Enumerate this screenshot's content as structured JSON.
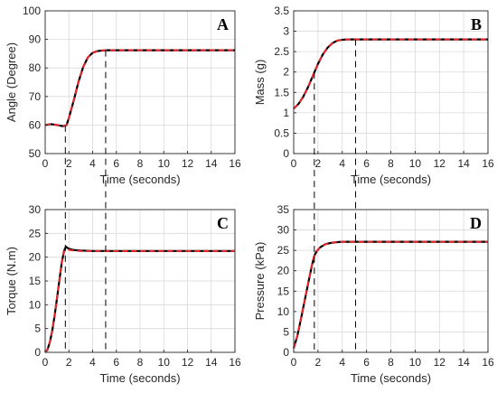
{
  "colors": {
    "black_curve": "#000000",
    "red_dashed_curve": "#e8262b",
    "grid": "#d9d9d9",
    "axes": "#262626",
    "dashed_marker": "#000000"
  },
  "marker_times": [
    1.7,
    5.1
  ],
  "chart_data": [
    {
      "type": "line",
      "panel": "A",
      "xlabel": "Time (seconds)",
      "ylabel": "Angle (Degree)",
      "xlim": [
        0,
        16
      ],
      "ylim": [
        50,
        100
      ],
      "xticks": [
        "0",
        "2",
        "4",
        "6",
        "8",
        "10",
        "12",
        "14",
        "16"
      ],
      "yticks": [
        "50",
        "60",
        "70",
        "80",
        "90",
        "100"
      ],
      "grid": true,
      "series": [
        {
          "style": "solid-black",
          "x": [
            0,
            0.5,
            1,
            1.5,
            1.8,
            2,
            2.4,
            2.8,
            3.2,
            3.6,
            4,
            4.4,
            4.8,
            5.2,
            6,
            8,
            10,
            12,
            14,
            16
          ],
          "y": [
            60,
            60.3,
            60,
            59.6,
            60,
            62.5,
            68.5,
            75,
            80.3,
            83.7,
            85.3,
            85.9,
            86.1,
            86.2,
            86.2,
            86.2,
            86.2,
            86.2,
            86.2,
            86.2
          ]
        },
        {
          "style": "dashed-red",
          "x": [
            0,
            0.5,
            1,
            1.5,
            1.8,
            2,
            2.4,
            2.8,
            3.2,
            3.6,
            4,
            4.4,
            4.8,
            5.2,
            6,
            8,
            10,
            12,
            14,
            16
          ],
          "y": [
            60,
            60.3,
            60,
            59.6,
            60,
            62.5,
            68.5,
            75,
            80.3,
            83.7,
            85.3,
            85.9,
            86.1,
            86.2,
            86.2,
            86.2,
            86.2,
            86.2,
            86.2,
            86.2
          ]
        }
      ]
    },
    {
      "type": "line",
      "panel": "B",
      "xlabel": "Time (seconds)",
      "ylabel": "Mass (g)",
      "xlim": [
        0,
        16
      ],
      "ylim": [
        0,
        3.5
      ],
      "xticks": [
        "0",
        "2",
        "4",
        "6",
        "8",
        "10",
        "12",
        "14",
        "16"
      ],
      "yticks": [
        "0",
        "0.5",
        "1",
        "1.5",
        "2",
        "2.5",
        "3",
        "3.5"
      ],
      "grid": true,
      "series": [
        {
          "style": "solid-black",
          "x": [
            0,
            0.4,
            0.8,
            1.2,
            1.6,
            2,
            2.4,
            2.8,
            3.2,
            3.6,
            4,
            4.4,
            5,
            6,
            8,
            10,
            12,
            14,
            16
          ],
          "y": [
            1.1,
            1.22,
            1.4,
            1.64,
            1.92,
            2.2,
            2.43,
            2.6,
            2.71,
            2.77,
            2.79,
            2.8,
            2.8,
            2.8,
            2.8,
            2.8,
            2.8,
            2.8,
            2.8
          ]
        },
        {
          "style": "dashed-red",
          "x": [
            0,
            0.4,
            0.8,
            1.2,
            1.6,
            2,
            2.4,
            2.8,
            3.2,
            3.6,
            4,
            4.4,
            5,
            6,
            8,
            10,
            12,
            14,
            16
          ],
          "y": [
            1.1,
            1.22,
            1.4,
            1.64,
            1.92,
            2.2,
            2.43,
            2.6,
            2.71,
            2.77,
            2.79,
            2.8,
            2.8,
            2.8,
            2.8,
            2.8,
            2.8,
            2.8,
            2.8
          ]
        }
      ]
    },
    {
      "type": "line",
      "panel": "C",
      "xlabel": "Time (seconds)",
      "ylabel": "Torque (N.m)",
      "xlim": [
        0,
        16
      ],
      "ylim": [
        0,
        30
      ],
      "xticks": [
        "0",
        "2",
        "4",
        "6",
        "8",
        "10",
        "12",
        "14",
        "16"
      ],
      "yticks": [
        "0",
        "5",
        "10",
        "15",
        "20",
        "25",
        "30"
      ],
      "grid": true,
      "series": [
        {
          "style": "solid-black",
          "x": [
            0,
            0.2,
            0.4,
            0.6,
            0.8,
            1,
            1.2,
            1.4,
            1.6,
            1.75,
            1.9,
            2.1,
            2.4,
            3,
            4,
            5,
            6,
            8,
            10,
            12,
            14,
            16
          ],
          "y": [
            0,
            0.6,
            2.2,
            4.6,
            7.8,
            11.4,
            15.2,
            18.9,
            21.4,
            22.2,
            21.9,
            21.7,
            21.5,
            21.4,
            21.3,
            21.3,
            21.3,
            21.3,
            21.3,
            21.3,
            21.3,
            21.3
          ]
        },
        {
          "style": "dashed-red",
          "x": [
            0,
            0.2,
            0.4,
            0.6,
            0.8,
            1,
            1.2,
            1.4,
            1.6,
            1.75,
            1.9,
            2.1,
            2.4,
            3,
            4,
            5,
            6,
            8,
            10,
            12,
            14,
            16
          ],
          "y": [
            0,
            0.6,
            2.2,
            4.6,
            7.8,
            11.4,
            15.2,
            18.9,
            21.2,
            21.7,
            21.6,
            21.5,
            21.4,
            21.3,
            21.3,
            21.3,
            21.3,
            21.3,
            21.3,
            21.3,
            21.3,
            21.3
          ]
        }
      ]
    },
    {
      "type": "line",
      "panel": "D",
      "xlabel": "Time (seconds)",
      "ylabel": "Pressure (kPa)",
      "xlim": [
        0,
        16
      ],
      "ylim": [
        0,
        35
      ],
      "xticks": [
        "0",
        "2",
        "4",
        "6",
        "8",
        "10",
        "12",
        "14",
        "16"
      ],
      "yticks": [
        "0",
        "5",
        "10",
        "15",
        "20",
        "25",
        "30",
        "35"
      ],
      "grid": true,
      "series": [
        {
          "style": "solid-black",
          "x": [
            0,
            0.3,
            0.6,
            0.9,
            1.2,
            1.5,
            1.7,
            1.9,
            2.2,
            2.6,
            3,
            3.5,
            4,
            5,
            6,
            8,
            10,
            12,
            14,
            16
          ],
          "y": [
            1,
            4,
            8.2,
            12.6,
            17,
            21.3,
            23.7,
            24.8,
            25.8,
            26.5,
            26.8,
            27,
            27.1,
            27.1,
            27.1,
            27.1,
            27.1,
            27.1,
            27.1,
            27.1
          ]
        },
        {
          "style": "dashed-red",
          "x": [
            0,
            0.3,
            0.6,
            0.9,
            1.2,
            1.5,
            1.7,
            1.9,
            2.2,
            2.6,
            3,
            3.5,
            4,
            5,
            6,
            8,
            10,
            12,
            14,
            16
          ],
          "y": [
            1,
            4,
            8.2,
            12.6,
            17,
            21.3,
            23.7,
            24.8,
            25.8,
            26.5,
            26.8,
            27,
            27.1,
            27.1,
            27.1,
            27.1,
            27.1,
            27.1,
            27.1,
            27.1
          ]
        }
      ]
    }
  ]
}
